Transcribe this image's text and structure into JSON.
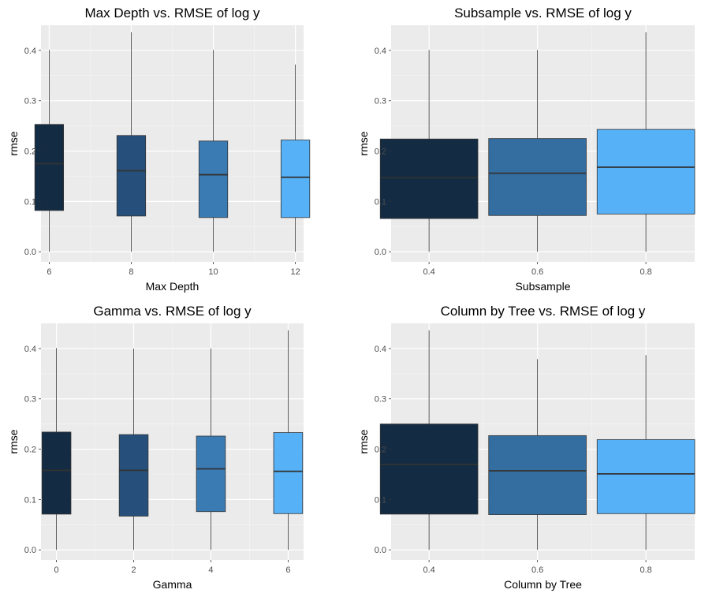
{
  "chart_data": [
    {
      "type": "box",
      "title": "Max Depth vs. RMSE of log y",
      "xlabel": "Max Depth",
      "ylabel": "rmse",
      "x_axis": "continuous",
      "xlim": [
        5.8,
        12.2
      ],
      "xticks": [
        6,
        8,
        10,
        12
      ],
      "ylim": [
        -0.02,
        0.45
      ],
      "yticks": [
        0.0,
        0.1,
        0.2,
        0.3,
        0.4
      ],
      "box_width": 0.7,
      "boxes": [
        {
          "x": 6,
          "label": "6",
          "min": 0.0,
          "q1": 0.082,
          "median": 0.175,
          "q3": 0.253,
          "max": 0.401,
          "color": "#132B43"
        },
        {
          "x": 8,
          "label": "8",
          "min": 0.0,
          "q1": 0.071,
          "median": 0.161,
          "q3": 0.231,
          "max": 0.436,
          "color": "#26507B"
        },
        {
          "x": 10,
          "label": "10",
          "min": 0.0,
          "q1": 0.068,
          "median": 0.153,
          "q3": 0.22,
          "max": 0.401,
          "color": "#3A7BB4"
        },
        {
          "x": 12,
          "label": "12",
          "min": 0.0,
          "q1": 0.068,
          "median": 0.148,
          "q3": 0.222,
          "max": 0.372,
          "color": "#56B1F7"
        }
      ]
    },
    {
      "type": "box",
      "title": "Subsample vs. RMSE of log y",
      "xlabel": "Subsample",
      "ylabel": "rmse",
      "x_axis": "continuous",
      "xlim": [
        0.33,
        0.89
      ],
      "xticks": [
        0.4,
        0.6,
        0.8
      ],
      "ylim": [
        -0.02,
        0.45
      ],
      "yticks": [
        0.0,
        0.1,
        0.2,
        0.3,
        0.4
      ],
      "box_width": 0.18,
      "boxes": [
        {
          "x": 0.4,
          "label": "0.4",
          "min": 0.0,
          "q1": 0.066,
          "median": 0.147,
          "q3": 0.224,
          "max": 0.401,
          "color": "#132B43"
        },
        {
          "x": 0.6,
          "label": "0.6",
          "min": 0.0,
          "q1": 0.072,
          "median": 0.156,
          "q3": 0.225,
          "max": 0.401,
          "color": "#346D9F"
        },
        {
          "x": 0.8,
          "label": "0.8",
          "min": 0.0,
          "q1": 0.075,
          "median": 0.168,
          "q3": 0.243,
          "max": 0.436,
          "color": "#56B1F7"
        }
      ]
    },
    {
      "type": "box",
      "title": "Gamma vs. RMSE of log y",
      "xlabel": "Gamma",
      "ylabel": "rmse",
      "x_axis": "continuous",
      "xlim": [
        -0.4,
        6.4
      ],
      "xticks": [
        0,
        2,
        4,
        6
      ],
      "ylim": [
        -0.02,
        0.45
      ],
      "yticks": [
        0.0,
        0.1,
        0.2,
        0.3,
        0.4
      ],
      "box_width": 0.75,
      "boxes": [
        {
          "x": 0,
          "label": "0",
          "min": 0.0,
          "q1": 0.071,
          "median": 0.158,
          "q3": 0.234,
          "max": 0.401,
          "color": "#132B43"
        },
        {
          "x": 2,
          "label": "2",
          "min": 0.0,
          "q1": 0.067,
          "median": 0.158,
          "q3": 0.229,
          "max": 0.4,
          "color": "#26507B"
        },
        {
          "x": 4,
          "label": "4",
          "min": 0.0,
          "q1": 0.076,
          "median": 0.161,
          "q3": 0.226,
          "max": 0.4,
          "color": "#3A7BB4"
        },
        {
          "x": 6,
          "label": "6",
          "min": 0.0,
          "q1": 0.072,
          "median": 0.156,
          "q3": 0.233,
          "max": 0.436,
          "color": "#56B1F7"
        }
      ]
    },
    {
      "type": "box",
      "title": "Column by Tree vs. RMSE of log y",
      "xlabel": "Column by Tree",
      "ylabel": "rmse",
      "x_axis": "continuous",
      "xlim": [
        0.33,
        0.89
      ],
      "xticks": [
        0.4,
        0.6,
        0.8
      ],
      "ylim": [
        -0.02,
        0.45
      ],
      "yticks": [
        0.0,
        0.1,
        0.2,
        0.3,
        0.4
      ],
      "box_width": 0.18,
      "boxes": [
        {
          "x": 0.4,
          "label": "0.4",
          "min": 0.0,
          "q1": 0.071,
          "median": 0.17,
          "q3": 0.25,
          "max": 0.436,
          "color": "#132B43"
        },
        {
          "x": 0.6,
          "label": "0.6",
          "min": 0.0,
          "q1": 0.07,
          "median": 0.157,
          "q3": 0.227,
          "max": 0.379,
          "color": "#346D9F"
        },
        {
          "x": 0.8,
          "label": "0.8",
          "min": 0.0,
          "q1": 0.072,
          "median": 0.151,
          "q3": 0.219,
          "max": 0.387,
          "color": "#56B1F7"
        }
      ]
    }
  ]
}
